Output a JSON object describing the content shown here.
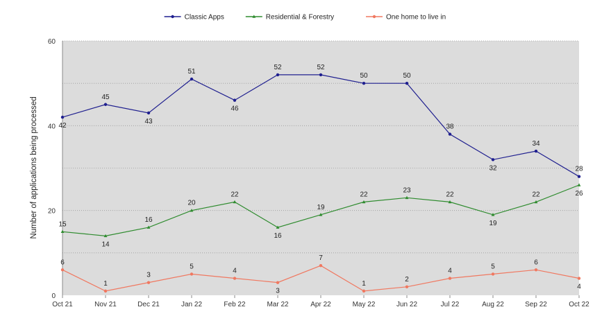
{
  "chart_data": {
    "type": "line",
    "title": "",
    "xlabel": "",
    "ylabel": "Number of applications being processed",
    "ylim": [
      0,
      60
    ],
    "yticks": [
      0,
      20,
      40,
      60
    ],
    "grid": true,
    "legend_position": "top",
    "categories": [
      "Oct 21",
      "Nov 21",
      "Dec 21",
      "Jan 22",
      "Feb 22",
      "Mar 22",
      "Apr 22",
      "May 22",
      "Jun 22",
      "Jul 22",
      "Aug 22",
      "Sep 22",
      "Oct 22"
    ],
    "series": [
      {
        "name": "Classic Apps",
        "color": "#1f1f8f",
        "marker": "circle",
        "values": [
          42,
          45,
          43,
          51,
          46,
          52,
          52,
          50,
          50,
          38,
          32,
          34,
          28
        ],
        "label_side": [
          "below",
          "above",
          "below",
          "above",
          "below",
          "above",
          "above",
          "above",
          "above",
          "above",
          "below",
          "above",
          "above"
        ]
      },
      {
        "name": "Residential & Forestry",
        "color": "#2e8b2e",
        "marker": "triangle",
        "values": [
          15,
          14,
          16,
          20,
          22,
          16,
          19,
          22,
          23,
          22,
          19,
          22,
          26
        ],
        "label_side": [
          "above",
          "below",
          "above",
          "above",
          "above",
          "below",
          "above",
          "above",
          "above",
          "above",
          "below",
          "above",
          "below"
        ]
      },
      {
        "name": "One home to live in",
        "color": "#f07860",
        "marker": "circle",
        "values": [
          6,
          1,
          3,
          5,
          4,
          3,
          7,
          1,
          2,
          4,
          5,
          6,
          4
        ],
        "label_side": [
          "above",
          "above",
          "above",
          "above",
          "above",
          "below",
          "above",
          "above",
          "above",
          "above",
          "above",
          "above",
          "below"
        ]
      }
    ]
  }
}
